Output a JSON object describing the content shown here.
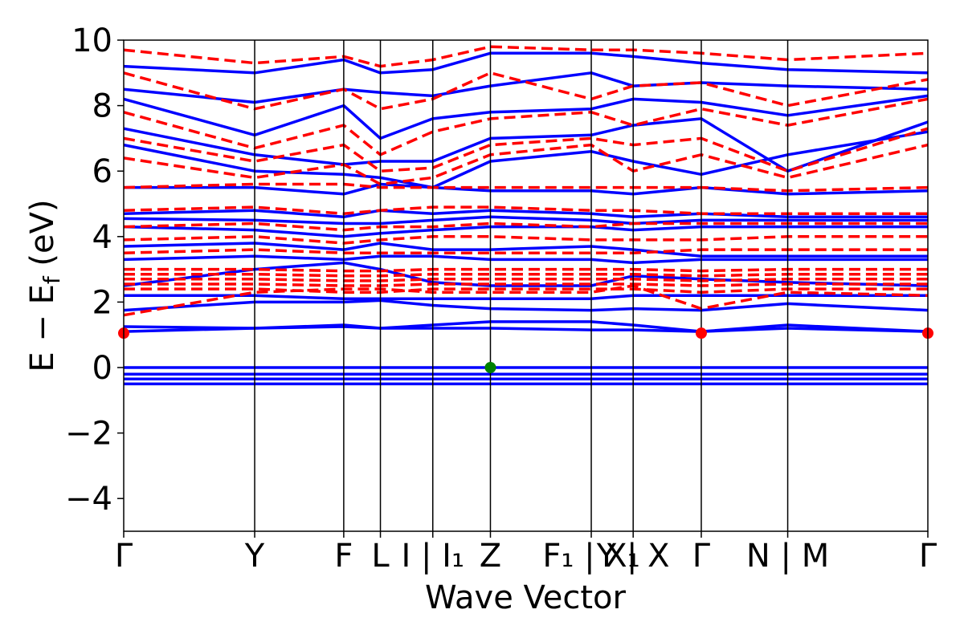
{
  "chart_data": {
    "type": "line",
    "title": "",
    "xlabel": "Wave Vector",
    "ylabel": "E − E_f (eV)",
    "ylabel_main": "E − E",
    "ylabel_sub": "f",
    "ylabel_unit": " (eV)",
    "ylim": [
      -5,
      10
    ],
    "yticks": [
      -4,
      -2,
      0,
      2,
      4,
      6,
      8,
      10
    ],
    "ytick_labels": [
      "−4",
      "−2",
      "0",
      "2",
      "4",
      "6",
      "8",
      "10"
    ],
    "kpath": [
      {
        "label": "Γ",
        "x": 0.0
      },
      {
        "label": "Y",
        "x": 1.0
      },
      {
        "label": "F",
        "x": 1.68
      },
      {
        "label": "L",
        "x": 1.96
      },
      {
        "label": "I | I₁",
        "x": 2.36
      },
      {
        "label": "Z",
        "x": 2.8
      },
      {
        "label": "F₁ | X₁",
        "x": 3.57
      },
      {
        "label": "Y | X",
        "x": 3.89
      },
      {
        "label": "Γ",
        "x": 4.41
      },
      {
        "label": "N | M",
        "x": 5.07
      },
      {
        "label": "Γ",
        "x": 6.14
      }
    ],
    "xlim": [
      0,
      6.14
    ],
    "grid": false,
    "series": [
      {
        "style": "solid",
        "color": "#0000ff",
        "bands": [
          [
            -0.5,
            -0.5,
            -0.5,
            -0.5,
            -0.5,
            -0.5,
            -0.5,
            -0.5,
            -0.5,
            -0.5,
            -0.5
          ],
          [
            -0.35,
            -0.35,
            -0.35,
            -0.35,
            -0.35,
            -0.35,
            -0.35,
            -0.35,
            -0.35,
            -0.35,
            -0.35
          ],
          [
            -0.2,
            -0.2,
            -0.2,
            -0.2,
            -0.2,
            -0.2,
            -0.2,
            -0.2,
            -0.2,
            -0.2,
            -0.2
          ],
          [
            0.0,
            0.0,
            0.0,
            0.0,
            0.0,
            0.0,
            0.0,
            0.0,
            0.0,
            0.0,
            0.0
          ],
          [
            1.1,
            1.2,
            1.25,
            1.2,
            1.2,
            1.2,
            1.15,
            1.15,
            1.1,
            1.2,
            1.1
          ],
          [
            1.25,
            1.2,
            1.3,
            1.2,
            1.3,
            1.4,
            1.4,
            1.3,
            1.1,
            1.3,
            1.1
          ],
          [
            1.75,
            2.0,
            2.0,
            2.05,
            1.9,
            1.8,
            1.75,
            1.8,
            1.75,
            1.95,
            1.75
          ],
          [
            2.2,
            2.2,
            2.1,
            2.1,
            2.1,
            2.1,
            2.1,
            2.2,
            2.2,
            2.2,
            2.2
          ],
          [
            2.5,
            3.0,
            3.2,
            3.0,
            2.6,
            2.5,
            2.5,
            2.8,
            2.7,
            2.6,
            2.5
          ],
          [
            3.3,
            3.4,
            3.3,
            3.4,
            3.4,
            3.3,
            3.3,
            3.2,
            3.3,
            3.3,
            3.3
          ],
          [
            3.7,
            3.8,
            3.6,
            3.8,
            3.6,
            3.6,
            3.7,
            3.6,
            3.4,
            3.4,
            3.4
          ],
          [
            4.3,
            4.2,
            4.0,
            4.1,
            4.2,
            4.3,
            4.3,
            4.2,
            4.3,
            4.3,
            4.3
          ],
          [
            4.55,
            4.5,
            4.4,
            4.4,
            4.5,
            4.6,
            4.5,
            4.4,
            4.5,
            4.5,
            4.5
          ],
          [
            4.7,
            4.8,
            4.6,
            4.8,
            4.7,
            4.8,
            4.7,
            4.6,
            4.7,
            4.6,
            4.6
          ],
          [
            5.5,
            5.5,
            5.3,
            5.6,
            5.5,
            5.4,
            5.4,
            5.3,
            5.5,
            5.3,
            5.4
          ],
          [
            6.8,
            6.0,
            5.9,
            5.8,
            5.5,
            6.3,
            6.6,
            6.3,
            5.9,
            6.5,
            7.2
          ],
          [
            7.3,
            6.5,
            6.2,
            6.3,
            6.3,
            7.0,
            7.1,
            7.4,
            7.6,
            6.0,
            7.5
          ],
          [
            8.2,
            7.1,
            8.0,
            7.0,
            7.6,
            7.8,
            7.9,
            8.2,
            8.1,
            7.7,
            8.3
          ],
          [
            8.5,
            8.1,
            8.5,
            8.4,
            8.3,
            8.6,
            9.0,
            8.6,
            8.7,
            8.6,
            8.5
          ],
          [
            9.2,
            9.0,
            9.4,
            9.0,
            9.1,
            9.6,
            9.6,
            9.5,
            9.3,
            9.1,
            9.0
          ]
        ]
      },
      {
        "style": "dashed",
        "color": "#ff0000",
        "bands": [
          [
            1.6,
            2.3,
            2.4,
            2.4,
            2.3,
            2.3,
            2.3,
            2.5,
            1.8,
            2.3,
            2.2
          ],
          [
            2.4,
            2.4,
            2.3,
            2.3,
            2.4,
            2.4,
            2.4,
            2.4,
            2.3,
            2.4,
            2.4
          ],
          [
            2.55,
            2.55,
            2.5,
            2.5,
            2.55,
            2.55,
            2.55,
            2.55,
            2.5,
            2.55,
            2.55
          ],
          [
            2.7,
            2.7,
            2.65,
            2.65,
            2.7,
            2.7,
            2.7,
            2.7,
            2.65,
            2.7,
            2.7
          ],
          [
            2.85,
            2.85,
            2.8,
            2.8,
            2.85,
            2.85,
            2.85,
            2.85,
            2.8,
            2.85,
            2.85
          ],
          [
            3.0,
            3.0,
            2.95,
            2.95,
            3.0,
            3.0,
            3.0,
            3.0,
            2.95,
            3.0,
            3.0
          ],
          [
            3.5,
            3.6,
            3.5,
            3.5,
            3.5,
            3.5,
            3.5,
            3.5,
            3.6,
            3.6,
            3.6
          ],
          [
            3.9,
            4.0,
            3.8,
            3.9,
            4.0,
            4.0,
            3.9,
            3.9,
            3.9,
            4.0,
            4.0
          ],
          [
            4.3,
            4.4,
            4.2,
            4.3,
            4.3,
            4.4,
            4.3,
            4.4,
            4.4,
            4.4,
            4.4
          ],
          [
            4.8,
            4.9,
            4.7,
            4.8,
            4.9,
            4.9,
            4.8,
            4.8,
            4.7,
            4.7,
            4.7
          ],
          [
            5.5,
            5.6,
            5.6,
            5.5,
            5.5,
            5.5,
            5.5,
            5.5,
            5.5,
            5.4,
            5.5
          ],
          [
            6.4,
            5.8,
            6.2,
            5.6,
            5.8,
            6.5,
            6.8,
            6.0,
            6.5,
            5.8,
            6.8
          ],
          [
            7.0,
            6.3,
            6.8,
            6.0,
            6.1,
            6.8,
            7.0,
            6.8,
            7.0,
            6.0,
            7.3
          ],
          [
            7.8,
            6.7,
            7.4,
            6.5,
            7.2,
            7.6,
            7.8,
            7.4,
            7.9,
            7.4,
            8.2
          ],
          [
            9.0,
            7.9,
            8.5,
            7.9,
            8.2,
            9.0,
            8.2,
            8.6,
            8.7,
            8.0,
            8.8
          ],
          [
            9.7,
            9.3,
            9.5,
            9.2,
            9.4,
            9.8,
            9.7,
            9.7,
            9.6,
            9.4,
            9.6
          ]
        ]
      }
    ],
    "markers": [
      {
        "x": 0.0,
        "y": 1.05,
        "color": "#ff0000"
      },
      {
        "x": 4.41,
        "y": 1.05,
        "color": "#ff0000"
      },
      {
        "x": 6.14,
        "y": 1.05,
        "color": "#ff0000"
      },
      {
        "x": 2.8,
        "y": 0.0,
        "color": "#008000"
      }
    ]
  }
}
